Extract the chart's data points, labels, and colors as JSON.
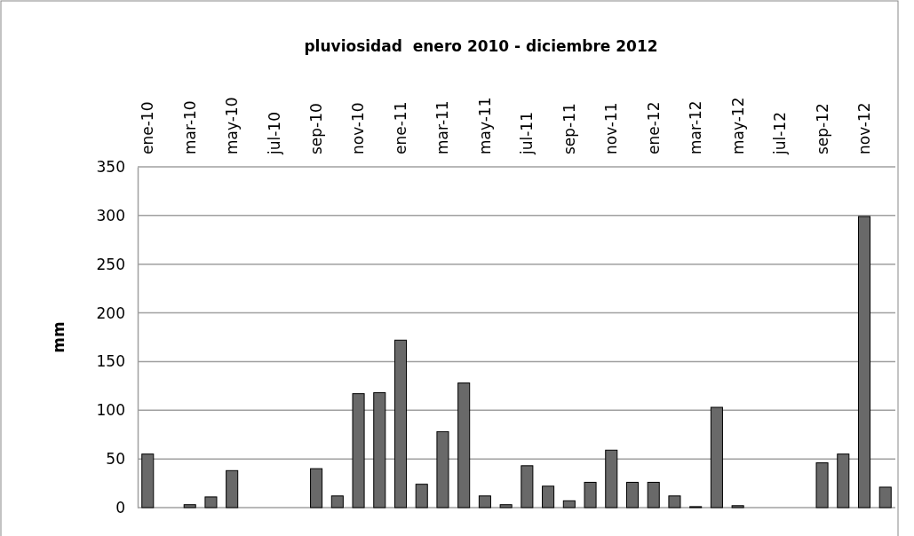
{
  "chart_data": {
    "type": "bar",
    "title": "pluviosidad  enero 2010 - diciembre 2012",
    "ylabel": "mm",
    "categories": [
      "ene-10",
      null,
      "mar-10",
      null,
      "may-10",
      null,
      "jul-10",
      null,
      "sep-10",
      null,
      "nov-10",
      null,
      "ene-11",
      null,
      "mar-11",
      null,
      "may-11",
      null,
      "jul-11",
      null,
      "sep-11",
      null,
      "nov-11",
      null,
      "ene-12",
      null,
      "mar-12",
      null,
      "may-12",
      null,
      "jul-12",
      null,
      "sep-12",
      null,
      "nov-12",
      null
    ],
    "values": [
      55,
      0,
      3,
      11,
      38,
      0,
      0,
      0,
      40,
      12,
      117,
      118,
      172,
      24,
      78,
      128,
      12,
      3,
      43,
      22,
      7,
      26,
      59,
      26,
      26,
      12,
      1,
      103,
      2,
      0,
      0,
      0,
      46,
      55,
      299,
      21
    ],
    "color": "#696969",
    "ylim": [
      0,
      350
    ],
    "yticks": [
      0,
      50,
      100,
      150,
      200,
      250,
      300,
      350
    ],
    "grid": "y"
  }
}
